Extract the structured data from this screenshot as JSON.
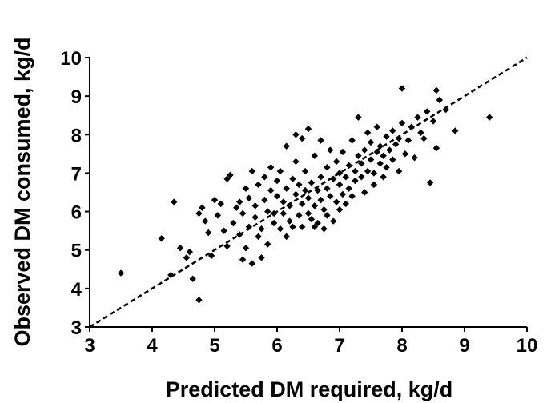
{
  "chart_data": {
    "type": "scatter",
    "xlabel": "Predicted DM required, kg/d",
    "ylabel": "Observed DM consumed, kg/d",
    "xlim": [
      3,
      10
    ],
    "ylim": [
      3,
      10
    ],
    "x_ticks": [
      "3",
      "4",
      "5",
      "6",
      "7",
      "8",
      "9",
      "10"
    ],
    "y_ticks": [
      "3",
      "4",
      "5",
      "6",
      "7",
      "8",
      "9",
      "10"
    ],
    "grid": false,
    "legend": "none",
    "reference_line": {
      "style": "dashed",
      "from": [
        3,
        3
      ],
      "to": [
        10,
        10
      ]
    },
    "marker": {
      "shape": "diamond",
      "color": "#000000"
    },
    "series": [
      {
        "points": [
          [
            3.5,
            4.4
          ],
          [
            4.15,
            5.3
          ],
          [
            4.3,
            4.35
          ],
          [
            4.35,
            6.25
          ],
          [
            4.45,
            5.05
          ],
          [
            4.55,
            4.8
          ],
          [
            4.6,
            4.95
          ],
          [
            4.65,
            4.25
          ],
          [
            4.75,
            3.7
          ],
          [
            4.75,
            5.95
          ],
          [
            4.8,
            6.1
          ],
          [
            4.85,
            5.75
          ],
          [
            4.9,
            5.45
          ],
          [
            4.95,
            4.85
          ],
          [
            5.0,
            6.3
          ],
          [
            5.05,
            5.9
          ],
          [
            5.1,
            6.2
          ],
          [
            5.15,
            5.5
          ],
          [
            5.2,
            6.85
          ],
          [
            5.2,
            5.1
          ],
          [
            5.25,
            6.95
          ],
          [
            5.3,
            5.7
          ],
          [
            5.35,
            6.1
          ],
          [
            5.4,
            6.25
          ],
          [
            5.4,
            5.4
          ],
          [
            5.45,
            5.95
          ],
          [
            5.45,
            4.75
          ],
          [
            5.5,
            6.6
          ],
          [
            5.5,
            5.05
          ],
          [
            5.55,
            5.6
          ],
          [
            5.55,
            6.35
          ],
          [
            5.6,
            7.05
          ],
          [
            5.6,
            4.65
          ],
          [
            5.65,
            6.15
          ],
          [
            5.65,
            5.85
          ],
          [
            5.7,
            5.35
          ],
          [
            5.7,
            6.7
          ],
          [
            5.75,
            5.55
          ],
          [
            5.75,
            4.8
          ],
          [
            5.8,
            6.3
          ],
          [
            5.8,
            6.9
          ],
          [
            5.85,
            5.15
          ],
          [
            5.85,
            6.0
          ],
          [
            5.9,
            6.55
          ],
          [
            5.9,
            7.15
          ],
          [
            5.95,
            5.7
          ],
          [
            5.95,
            5.95
          ],
          [
            6.0,
            6.4
          ],
          [
            6.0,
            6.8
          ],
          [
            6.05,
            5.55
          ],
          [
            6.05,
            7.05
          ],
          [
            6.1,
            5.95
          ],
          [
            6.1,
            6.25
          ],
          [
            6.15,
            5.35
          ],
          [
            6.15,
            6.6
          ],
          [
            6.15,
            7.7
          ],
          [
            6.2,
            5.75
          ],
          [
            6.2,
            6.15
          ],
          [
            6.25,
            6.85
          ],
          [
            6.25,
            5.6
          ],
          [
            6.3,
            6.45
          ],
          [
            6.3,
            7.3
          ],
          [
            6.3,
            8.0
          ],
          [
            6.35,
            5.9
          ],
          [
            6.35,
            6.7
          ],
          [
            6.4,
            6.2
          ],
          [
            6.4,
            5.6
          ],
          [
            6.4,
            7.9
          ],
          [
            6.45,
            6.55
          ],
          [
            6.45,
            7.05
          ],
          [
            6.5,
            5.95
          ],
          [
            6.5,
            6.35
          ],
          [
            6.5,
            8.15
          ],
          [
            6.55,
            6.75
          ],
          [
            6.55,
            5.8
          ],
          [
            6.6,
            6.15
          ],
          [
            6.6,
            7.45
          ],
          [
            6.6,
            5.6
          ],
          [
            6.65,
            6.55
          ],
          [
            6.65,
            5.7
          ],
          [
            6.7,
            6.9
          ],
          [
            6.7,
            6.3
          ],
          [
            6.7,
            7.85
          ],
          [
            6.75,
            6.05
          ],
          [
            6.75,
            5.55
          ],
          [
            6.8,
            6.6
          ],
          [
            6.8,
            7.15
          ],
          [
            6.8,
            5.9
          ],
          [
            6.85,
            6.4
          ],
          [
            6.85,
            7.6
          ],
          [
            6.9,
            6.85
          ],
          [
            6.9,
            5.75
          ],
          [
            6.95,
            6.25
          ],
          [
            6.95,
            7.3
          ],
          [
            7.0,
            6.7
          ],
          [
            7.0,
            6.05
          ],
          [
            7.0,
            7.0
          ],
          [
            7.05,
            6.45
          ],
          [
            7.05,
            7.55
          ],
          [
            7.1,
            6.9
          ],
          [
            7.1,
            6.2
          ],
          [
            7.15,
            7.2
          ],
          [
            7.15,
            6.6
          ],
          [
            7.2,
            7.85
          ],
          [
            7.2,
            6.4
          ],
          [
            7.25,
            7.05
          ],
          [
            7.25,
            6.8
          ],
          [
            7.3,
            7.45
          ],
          [
            7.3,
            8.45
          ],
          [
            7.35,
            6.9
          ],
          [
            7.35,
            7.25
          ],
          [
            7.4,
            7.6
          ],
          [
            7.4,
            6.5
          ],
          [
            7.45,
            7.05
          ],
          [
            7.45,
            8.05
          ],
          [
            7.5,
            7.35
          ],
          [
            7.5,
            7.8
          ],
          [
            7.55,
            7.0
          ],
          [
            7.55,
            6.7
          ],
          [
            7.6,
            7.55
          ],
          [
            7.6,
            8.2
          ],
          [
            7.65,
            7.25
          ],
          [
            7.65,
            7.7
          ],
          [
            7.7,
            7.45
          ],
          [
            7.7,
            6.9
          ],
          [
            7.75,
            7.95
          ],
          [
            7.75,
            7.15
          ],
          [
            7.8,
            7.6
          ],
          [
            7.85,
            7.35
          ],
          [
            7.85,
            8.1
          ],
          [
            7.9,
            7.75
          ],
          [
            7.95,
            7.05
          ],
          [
            7.95,
            7.9
          ],
          [
            8.0,
            8.3
          ],
          [
            8.0,
            9.2
          ],
          [
            8.05,
            7.5
          ],
          [
            8.1,
            7.85
          ],
          [
            8.15,
            8.2
          ],
          [
            8.2,
            7.4
          ],
          [
            8.25,
            8.45
          ],
          [
            8.3,
            8.05
          ],
          [
            8.35,
            7.9
          ],
          [
            8.4,
            8.6
          ],
          [
            8.45,
            6.75
          ],
          [
            8.5,
            8.35
          ],
          [
            8.55,
            9.15
          ],
          [
            8.55,
            7.65
          ],
          [
            8.6,
            8.9
          ],
          [
            8.7,
            8.65
          ],
          [
            8.85,
            8.1
          ],
          [
            9.4,
            8.45
          ]
        ]
      }
    ]
  }
}
